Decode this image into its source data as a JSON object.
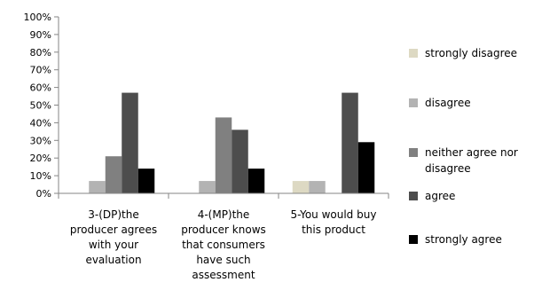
{
  "chart_data": {
    "type": "bar",
    "categories": [
      [
        "3-(DP)the",
        "producer agrees",
        "with your",
        "evaluation"
      ],
      [
        "4-(MP)the",
        "producer knows",
        "that consumers",
        "have such",
        "assessment"
      ],
      [
        "5-You would buy",
        "this product"
      ]
    ],
    "series": [
      {
        "name": "strongly disagree",
        "color": "#ddd9c3",
        "values": [
          0,
          0,
          7
        ]
      },
      {
        "name": "disagree",
        "color": "#b3b3b3",
        "values": [
          7,
          7,
          7
        ]
      },
      {
        "name": "neither agree nor disagree",
        "label_lines": [
          "neither agree nor",
          "disagree"
        ],
        "color": "#808080",
        "values": [
          21,
          43,
          0
        ]
      },
      {
        "name": "agree",
        "color": "#4d4d4d",
        "values": [
          57,
          36,
          57
        ]
      },
      {
        "name": "strongly agree",
        "color": "#000000",
        "values": [
          14,
          14,
          29
        ]
      }
    ],
    "y_ticks": [
      "0%",
      "10%",
      "20%",
      "30%",
      "40%",
      "50%",
      "60%",
      "70%",
      "80%",
      "90%",
      "100%"
    ],
    "ylim": [
      0,
      100
    ],
    "y_unit": "%",
    "grid": false,
    "legend_position": "right",
    "title": "",
    "xlabel": "",
    "ylabel": ""
  }
}
